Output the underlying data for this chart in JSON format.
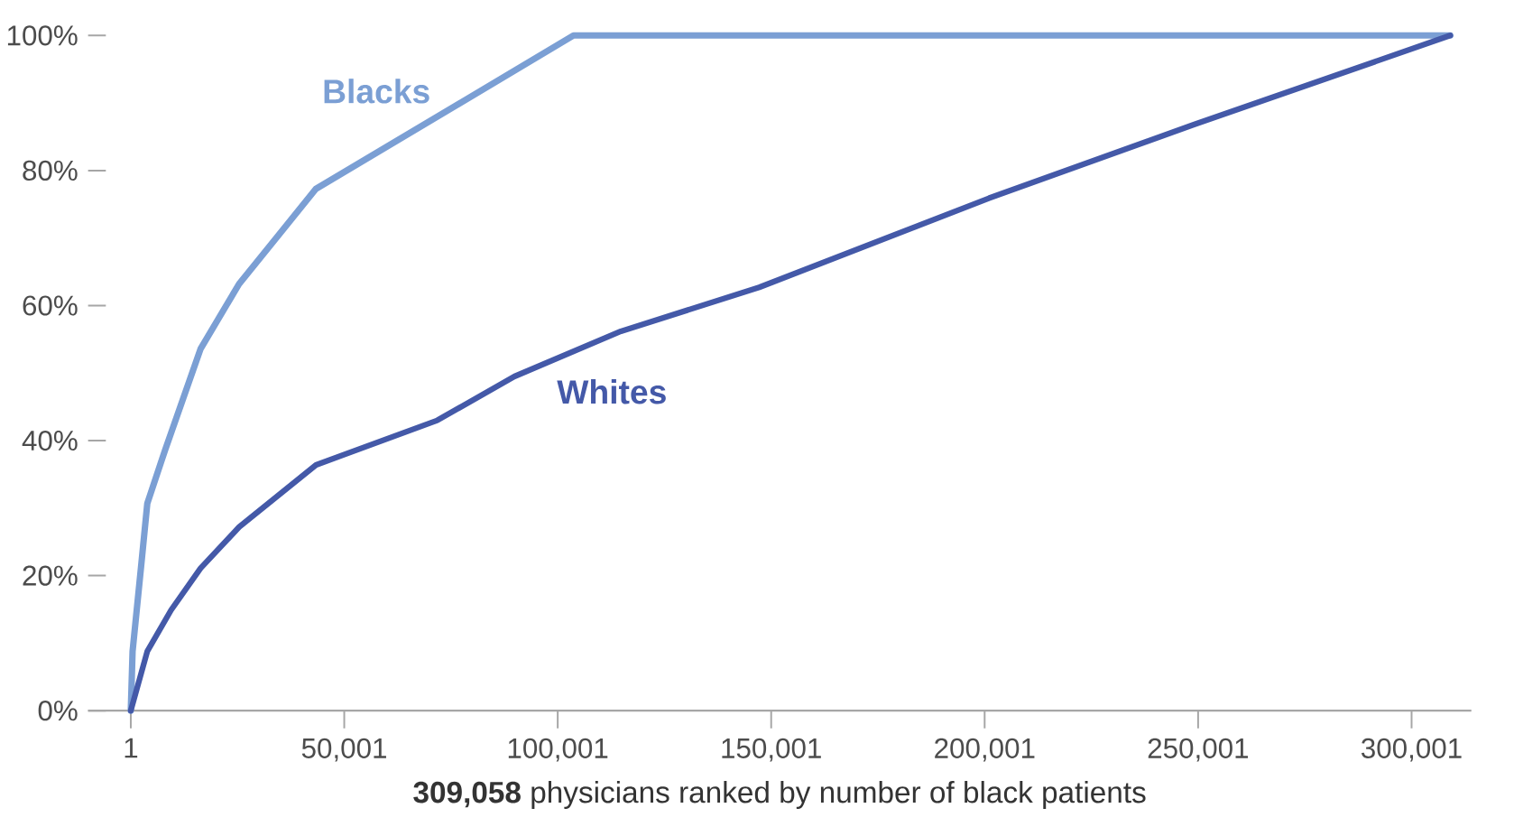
{
  "chart_data": {
    "type": "line",
    "xlabel": "**309,058** physicians ranked by number of black patients",
    "xlim": [
      -10000,
      314000
    ],
    "ylim": [
      0,
      100
    ],
    "xticks": [
      {
        "value": 1,
        "label": "1"
      },
      {
        "value": 50001,
        "label": "50,001"
      },
      {
        "value": 100001,
        "label": "100,001"
      },
      {
        "value": 150001,
        "label": "150,001"
      },
      {
        "value": 200001,
        "label": "200,001"
      },
      {
        "value": 250001,
        "label": "250,001"
      },
      {
        "value": 300001,
        "label": "300,001"
      }
    ],
    "yticks": [
      {
        "value": 0,
        "label": "0%"
      },
      {
        "value": 20,
        "label": "20%"
      },
      {
        "value": 40,
        "label": "40%"
      },
      {
        "value": 60,
        "label": "60%"
      },
      {
        "value": 80,
        "label": "80%"
      },
      {
        "value": 100,
        "label": "100%"
      }
    ],
    "grid": false,
    "marker": "none",
    "line_style": "solid",
    "series": [
      {
        "name": "Blacks",
        "color": "#7b9fd4",
        "x": [
          1,
          420,
          2500,
          3870,
          8030,
          16350,
          25370,
          43390,
          103700,
          309058
        ],
        "values": [
          0,
          8.8,
          21.9,
          30.7,
          38.6,
          53.6,
          63.2,
          77.3,
          100,
          100
        ]
      },
      {
        "name": "Whites",
        "color": "#4459a8",
        "x": [
          1,
          3870,
          9440,
          16350,
          25370,
          43390,
          71800,
          89850,
          114800,
          147200,
          201000,
          249000,
          309058
        ],
        "values": [
          0,
          8.8,
          14.9,
          21.1,
          27.2,
          36.4,
          43.0,
          49.5,
          56.2,
          62.7,
          75.9,
          86.8,
          100
        ]
      }
    ]
  }
}
